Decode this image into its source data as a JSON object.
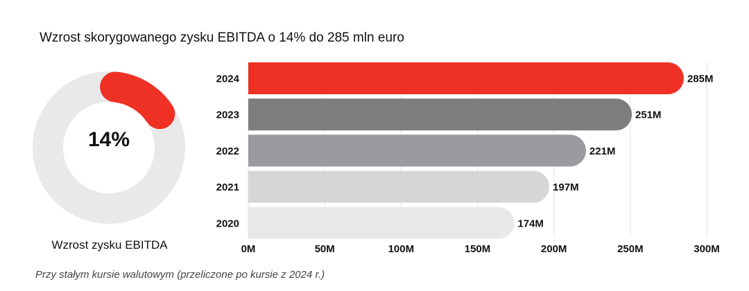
{
  "title": "Wzrost skorygowanego zysku EBITDA o 14% do 285 mln euro",
  "donut": {
    "value_label": "14%",
    "value": 14,
    "caption": "Wzrost zysku EBITDA",
    "track_color": "#e9e9e9",
    "fill_color": "#ee3124"
  },
  "footnote": "Przy stałym kursie walutowym (przeliczone po kursie z 2024 r.)",
  "chart_data": {
    "type": "bar",
    "orientation": "horizontal",
    "categories": [
      "2024",
      "2023",
      "2022",
      "2021",
      "2020"
    ],
    "values": [
      285,
      251,
      221,
      197,
      174
    ],
    "value_labels": [
      "285M",
      "251M",
      "221M",
      "197M",
      "174M"
    ],
    "bar_colors": [
      "#ee3124",
      "#7c7d7c",
      "#9b9b9f",
      "#d6d6d6",
      "#e8e8e8"
    ],
    "xlim": [
      0,
      300
    ],
    "x_ticks": [
      0,
      50,
      100,
      150,
      200,
      250,
      300
    ],
    "x_tick_labels": [
      "0M",
      "50M",
      "100M",
      "150M",
      "200M",
      "250M",
      "300M"
    ],
    "grid": "vertical"
  }
}
